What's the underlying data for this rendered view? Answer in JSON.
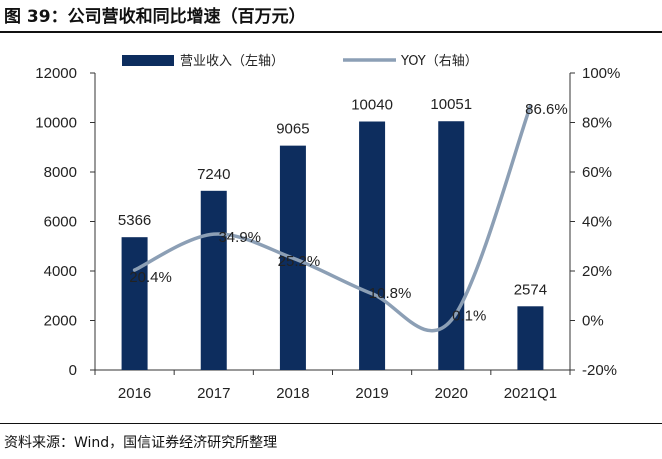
{
  "figure": {
    "title": "图 39：公司营收和同比增速（百万元）",
    "source": "资料来源：Wind，国信证券经济研究所整理"
  },
  "chart_data": {
    "type": "bar",
    "categories": [
      "2016",
      "2017",
      "2018",
      "2019",
      "2020",
      "2021Q1"
    ],
    "series": [
      {
        "name": "营业收入（左轴）",
        "type": "bar",
        "axis": "left",
        "values": [
          5366,
          7240,
          9065,
          10040,
          10051,
          2574
        ],
        "labels": [
          "5366",
          "7240",
          "9065",
          "10040",
          "10051",
          "2574"
        ],
        "color": "#0d2d5e"
      },
      {
        "name": "YOY（右轴）",
        "type": "line",
        "axis": "right",
        "values": [
          20.4,
          34.9,
          25.2,
          10.8,
          0.1,
          86.6
        ],
        "labels": [
          "20.4%",
          "34.9%",
          "25.2%",
          "10.8%",
          "0.1%",
          "86.6%"
        ],
        "color": "#8c9fb5"
      }
    ],
    "y_left": {
      "ylim": [
        0,
        12000
      ],
      "ticks": [
        "0",
        "2000",
        "4000",
        "6000",
        "8000",
        "10000",
        "12000"
      ]
    },
    "y_right": {
      "ylim": [
        -20,
        100
      ],
      "ticks": [
        "-20%",
        "0%",
        "20%",
        "40%",
        "60%",
        "80%",
        "100%"
      ]
    },
    "grid": false,
    "legend_position": "top-center"
  }
}
